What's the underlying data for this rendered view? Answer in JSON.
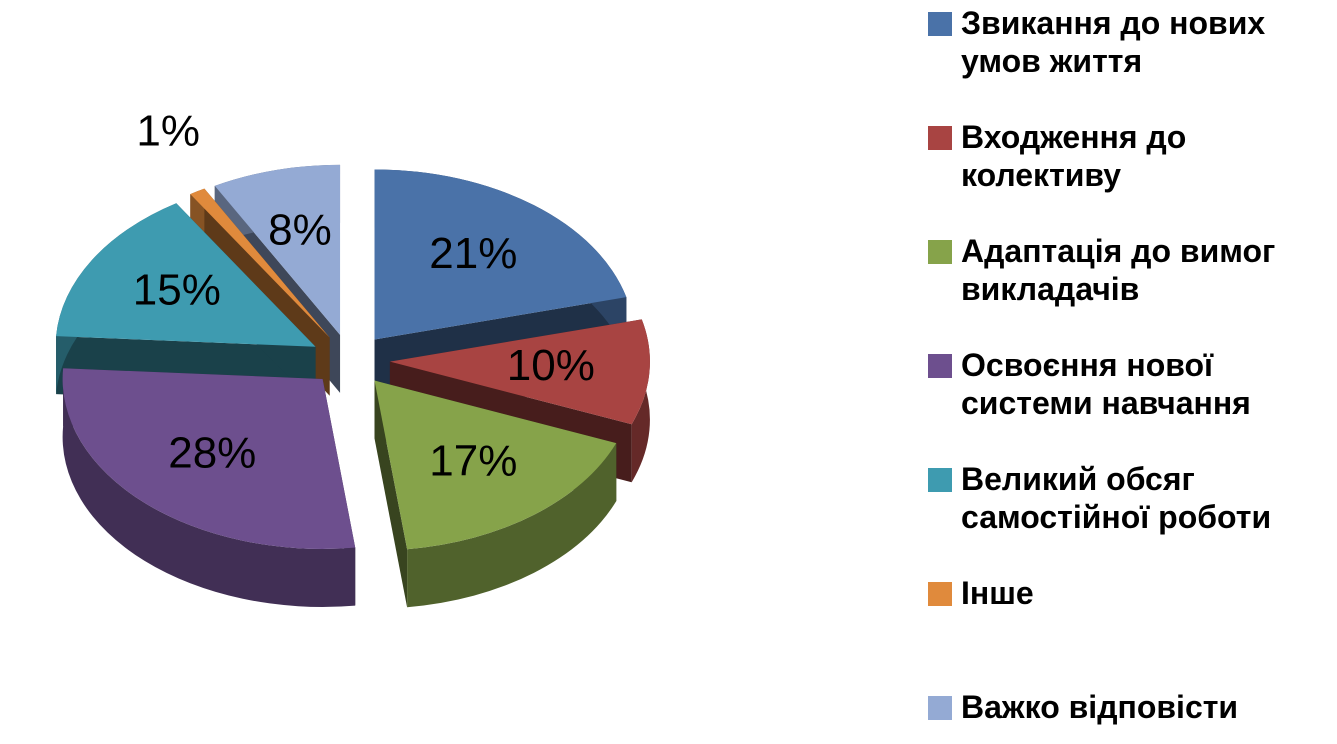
{
  "chart_data": {
    "type": "pie",
    "categories": [
      "Звикання до нових умов життя",
      "Входження до колективу",
      "Адаптація до вимог викладачів",
      "Освоєння нової системи навчання",
      "Великий обсяг самостійної роботи",
      "Інше",
      "Важко відповісти"
    ],
    "values": [
      21,
      10,
      17,
      28,
      15,
      1,
      8
    ],
    "value_labels": [
      "21%",
      "10%",
      "17%",
      "28%",
      "15%",
      "1%",
      "8%"
    ],
    "colors": [
      "#4a72a8",
      "#a84442",
      "#86a34a",
      "#6d4f8e",
      "#3e9bb0",
      "#e08a3c",
      "#94aad4"
    ],
    "legend": "right"
  }
}
